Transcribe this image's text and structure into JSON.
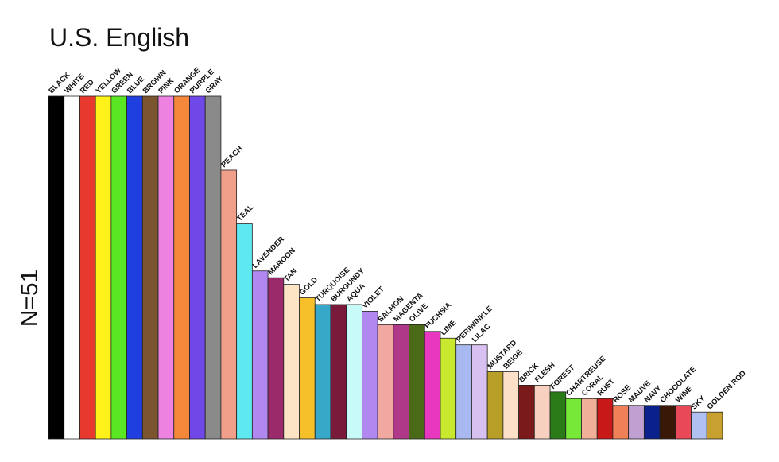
{
  "chart_data": {
    "type": "bar",
    "title": "U.S. English",
    "xlabel": "",
    "ylabel": "N=51",
    "ylim": [
      0,
      51
    ],
    "grid": false,
    "legend": "none",
    "categories": [
      "BLACK",
      "WHITE",
      "RED",
      "YELLOW",
      "GREEN",
      "BLUE",
      "BROWN",
      "PINK",
      "ORANGE",
      "PURPLE",
      "GRAY",
      "PEACH",
      "TEAL",
      "LAVENDER",
      "MAROON",
      "TAN",
      "GOLD",
      "TURQUOISE",
      "BURGUNDY",
      "AQUA",
      "VIOLET",
      "SALMON",
      "MAGENTA",
      "OLIVE",
      "FUCHSIA",
      "LIME",
      "PERIWINKLE",
      "LILAC",
      "MUSTARD",
      "BEIGE",
      "BRICK",
      "FLESH",
      "FOREST",
      "CHARTREUSE",
      "CORAL",
      "RUST",
      "ROSE",
      "MAUVE",
      "NAVY",
      "CHOCOLATE",
      "WINE",
      "SKY",
      "GOLDEN ROD"
    ],
    "values": [
      51,
      51,
      51,
      51,
      51,
      51,
      51,
      51,
      51,
      51,
      51,
      40,
      32,
      25,
      24,
      23,
      21,
      20,
      20,
      20,
      19,
      17,
      17,
      17,
      16,
      15,
      14,
      14,
      10,
      10,
      8,
      8,
      7,
      6,
      6,
      6,
      5,
      5,
      5,
      5,
      5,
      4,
      4
    ],
    "colors": [
      "#000000",
      "#ffffff",
      "#e8392f",
      "#fff21a",
      "#5be624",
      "#1f3fe0",
      "#7a5530",
      "#ee82e0",
      "#f5873a",
      "#7048e8",
      "#8a8a8a",
      "#f0a08a",
      "#5ee8f0",
      "#b088f0",
      "#9a2a6a",
      "#fde4c4",
      "#f5c02a",
      "#38a8c8",
      "#7a1a3a",
      "#c8faf8",
      "#b088f0",
      "#f0a8a0",
      "#b03888",
      "#4a6a18",
      "#e838c0",
      "#c8e830",
      "#a8b8f0",
      "#d8c0f0",
      "#b8a028",
      "#fde0c8",
      "#7a1a1a",
      "#f8d0c0",
      "#2a7a18",
      "#78e838",
      "#f0b098",
      "#c81818",
      "#f08058",
      "#c0a0d0",
      "#0a208a",
      "#3a1808",
      "#e84858",
      "#b0c0f0",
      "#c8a030"
    ]
  }
}
